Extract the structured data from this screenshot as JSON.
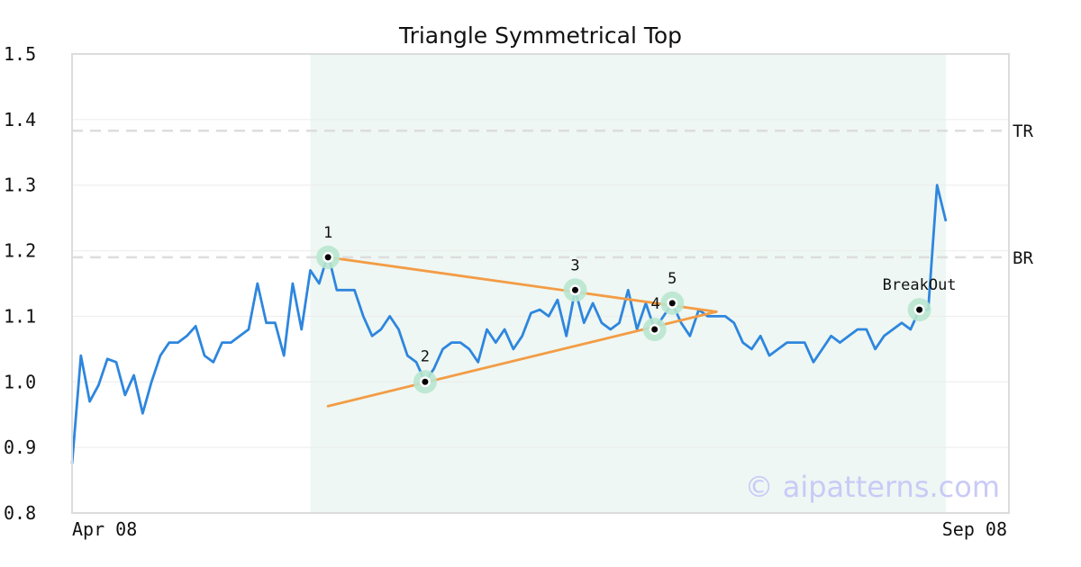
{
  "chart_data": {
    "type": "line",
    "title": "Triangle Symmetrical Top",
    "ylim": [
      0.8,
      1.5
    ],
    "y_ticks": [
      "1.5",
      "1.4",
      "1.3",
      "1.2",
      "1.1",
      "1.0",
      "0.9",
      "0.8"
    ],
    "y_tick_values": [
      1.5,
      1.4,
      1.3,
      1.2,
      1.1,
      1.0,
      0.9,
      0.8
    ],
    "x_tick_labels": [
      "Apr 08",
      "Sep 08"
    ],
    "grid": true,
    "series": [
      {
        "color": "#2e86de",
        "values": [
          0.875,
          1.04,
          0.97,
          0.995,
          1.035,
          1.03,
          0.98,
          1.01,
          0.952,
          1.0,
          1.04,
          1.06,
          1.06,
          1.07,
          1.085,
          1.04,
          1.03,
          1.06,
          1.06,
          1.07,
          1.08,
          1.15,
          1.09,
          1.09,
          1.04,
          1.15,
          1.08,
          1.17,
          1.15,
          1.195,
          1.14,
          1.14,
          1.14,
          1.1,
          1.07,
          1.08,
          1.1,
          1.08,
          1.04,
          1.03,
          1.0,
          1.02,
          1.05,
          1.06,
          1.06,
          1.05,
          1.03,
          1.08,
          1.06,
          1.08,
          1.05,
          1.07,
          1.105,
          1.11,
          1.1,
          1.125,
          1.07,
          1.14,
          1.09,
          1.12,
          1.09,
          1.08,
          1.09,
          1.14,
          1.08,
          1.12,
          1.08,
          1.1,
          1.12,
          1.09,
          1.07,
          1.11,
          1.1,
          1.1,
          1.1,
          1.09,
          1.06,
          1.05,
          1.07,
          1.04,
          1.05,
          1.06,
          1.06,
          1.06,
          1.03,
          1.05,
          1.07,
          1.06,
          1.07,
          1.08,
          1.08,
          1.05,
          1.07,
          1.08,
          1.09,
          1.08,
          1.11,
          1.11,
          1.3,
          1.245
        ]
      }
    ],
    "shaded_region": {
      "x_start": 27,
      "x_end": 99,
      "color": "#eef7f3"
    },
    "levels": [
      {
        "label": "TR",
        "value": 1.383,
        "color": "#dddddd"
      },
      {
        "label": "BR",
        "value": 1.19,
        "color": "#dddddd"
      }
    ],
    "trendlines": [
      {
        "color": "#f39c45",
        "points": [
          [
            29,
            1.19
          ],
          [
            73,
            1.107
          ]
        ]
      },
      {
        "color": "#f39c45",
        "points": [
          [
            29,
            0.963
          ],
          [
            73,
            1.107
          ]
        ]
      }
    ],
    "pattern_points": [
      {
        "label": "1",
        "x": 29,
        "y": 1.19
      },
      {
        "label": "2",
        "x": 40,
        "y": 1.0
      },
      {
        "label": "3",
        "x": 57,
        "y": 1.14
      },
      {
        "label": "4",
        "x": 66,
        "y": 1.08
      },
      {
        "label": "5",
        "x": 68,
        "y": 1.12
      },
      {
        "label": "BreakOut",
        "x": 96,
        "y": 1.11
      }
    ]
  },
  "watermark": "© aipatterns.com"
}
